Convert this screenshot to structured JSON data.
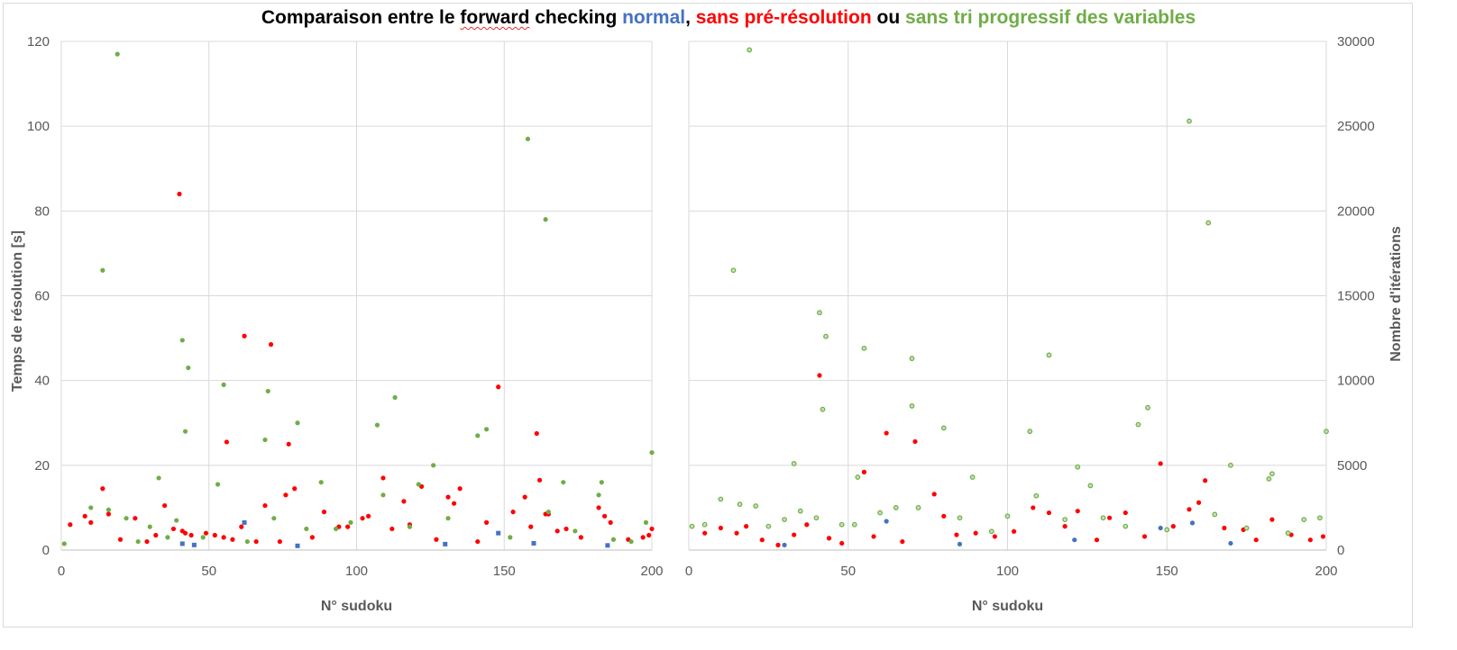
{
  "title": {
    "part1": "Comparaison entre le ",
    "part2": "forward",
    "part3": " checking ",
    "normal": "normal",
    "comma": ", ",
    "sans_pre": "sans pré-résolution",
    "ou": " ou ",
    "sans_tri": "sans tri progressif des variables"
  },
  "colors": {
    "normal": "#4472c4",
    "sans_pre": "#ff0000",
    "sans_tri": "#70ad47"
  },
  "chart_data": [
    {
      "type": "scatter",
      "xlabel": "N° sudoku",
      "ylabel": "Temps de résolution [s]",
      "xlim": [
        0,
        200
      ],
      "ylim": [
        0,
        120
      ],
      "xticks": [
        0,
        50,
        100,
        150,
        200
      ],
      "yticks": [
        0,
        20,
        40,
        60,
        80,
        100,
        120
      ],
      "grid": true,
      "series": [
        {
          "name": "normal",
          "color": "#4472c4",
          "marker": "square",
          "points": [
            [
              62,
              6.5
            ],
            [
              148,
              4
            ],
            [
              41,
              1.5
            ],
            [
              45,
              1.2
            ],
            [
              80,
              1.0
            ],
            [
              130,
              1.4
            ],
            [
              160,
              1.6
            ],
            [
              185,
              1.1
            ]
          ]
        },
        {
          "name": "sans pré-résolution",
          "color": "#ff0000",
          "marker": "circle",
          "points": [
            [
              3,
              6
            ],
            [
              8,
              8
            ],
            [
              10,
              6.5
            ],
            [
              14,
              14.5
            ],
            [
              16,
              8.5
            ],
            [
              20,
              2.5
            ],
            [
              25,
              7.5
            ],
            [
              29,
              2
            ],
            [
              32,
              3.5
            ],
            [
              35,
              10.5
            ],
            [
              38,
              5
            ],
            [
              40,
              84
            ],
            [
              41,
              4.5
            ],
            [
              42,
              4
            ],
            [
              44,
              3.5
            ],
            [
              49,
              4
            ],
            [
              52,
              3.5
            ],
            [
              55,
              3
            ],
            [
              56,
              25.5
            ],
            [
              58,
              2.5
            ],
            [
              61,
              5.5
            ],
            [
              62,
              50.5
            ],
            [
              66,
              2
            ],
            [
              69,
              10.5
            ],
            [
              71,
              48.5
            ],
            [
              74,
              2
            ],
            [
              76,
              13
            ],
            [
              77,
              25
            ],
            [
              79,
              14.5
            ],
            [
              85,
              3
            ],
            [
              89,
              9
            ],
            [
              94,
              5.5
            ],
            [
              97,
              5.5
            ],
            [
              102,
              7.5
            ],
            [
              104,
              8
            ],
            [
              109,
              17
            ],
            [
              112,
              5
            ],
            [
              116,
              11.5
            ],
            [
              118,
              6
            ],
            [
              122,
              15
            ],
            [
              127,
              2.5
            ],
            [
              131,
              12.5
            ],
            [
              133,
              11
            ],
            [
              135,
              14.5
            ],
            [
              141,
              2
            ],
            [
              144,
              6.5
            ],
            [
              148,
              38.5
            ],
            [
              153,
              9
            ],
            [
              157,
              12.5
            ],
            [
              159,
              5.5
            ],
            [
              161,
              27.5
            ],
            [
              162,
              16.5
            ],
            [
              164,
              8.5
            ],
            [
              165,
              8.5
            ],
            [
              168,
              4.5
            ],
            [
              171,
              5
            ],
            [
              176,
              3
            ],
            [
              182,
              10
            ],
            [
              184,
              8
            ],
            [
              186,
              6.5
            ],
            [
              192,
              2.5
            ],
            [
              197,
              3
            ],
            [
              199,
              3.5
            ],
            [
              200,
              5
            ]
          ]
        },
        {
          "name": "sans tri progressif des variables",
          "color": "#70ad47",
          "marker": "circle",
          "points": [
            [
              1,
              1.5
            ],
            [
              10,
              10
            ],
            [
              14,
              66
            ],
            [
              16,
              9.5
            ],
            [
              19,
              117
            ],
            [
              22,
              7.5
            ],
            [
              26,
              2
            ],
            [
              30,
              5.5
            ],
            [
              33,
              17
            ],
            [
              36,
              3
            ],
            [
              39,
              7
            ],
            [
              41,
              49.5
            ],
            [
              42,
              28
            ],
            [
              43,
              43
            ],
            [
              48,
              3
            ],
            [
              53,
              15.5
            ],
            [
              55,
              39
            ],
            [
              63,
              2
            ],
            [
              69,
              26
            ],
            [
              70,
              37.5
            ],
            [
              72,
              7.5
            ],
            [
              80,
              30
            ],
            [
              83,
              5
            ],
            [
              88,
              16
            ],
            [
              93,
              5
            ],
            [
              98,
              6.5
            ],
            [
              107,
              29.5
            ],
            [
              109,
              13
            ],
            [
              113,
              36
            ],
            [
              118,
              5.5
            ],
            [
              121,
              15.5
            ],
            [
              126,
              20
            ],
            [
              131,
              7.5
            ],
            [
              141,
              27
            ],
            [
              144,
              28.5
            ],
            [
              152,
              3
            ],
            [
              158,
              97
            ],
            [
              164,
              78
            ],
            [
              165,
              9
            ],
            [
              170,
              16
            ],
            [
              174,
              4.5
            ],
            [
              182,
              13
            ],
            [
              183,
              16
            ],
            [
              187,
              2.5
            ],
            [
              193,
              2
            ],
            [
              198,
              6.5
            ],
            [
              200,
              23
            ]
          ]
        }
      ]
    },
    {
      "type": "scatter",
      "xlabel": "N° sudoku",
      "ylabel": "Nombre d'itérations",
      "xlim": [
        0,
        200
      ],
      "ylim": [
        0,
        30000
      ],
      "xticks": [
        0,
        50,
        100,
        150,
        200
      ],
      "yticks": [
        0,
        5000,
        10000,
        15000,
        20000,
        25000,
        30000
      ],
      "yaxis_side": "right",
      "grid": true,
      "series": [
        {
          "name": "normal",
          "color": "#4472c4",
          "marker": "circle",
          "points": [
            [
              62,
              1700
            ],
            [
              148,
              1300
            ],
            [
              158,
              1600
            ],
            [
              44,
              700
            ],
            [
              121,
              600
            ],
            [
              170,
              400
            ],
            [
              85,
              350
            ],
            [
              30,
              300
            ]
          ]
        },
        {
          "name": "sans pré-résolution",
          "color": "#ff0000",
          "marker": "circle",
          "points": [
            [
              5,
              1000
            ],
            [
              10,
              1300
            ],
            [
              15,
              1000
            ],
            [
              18,
              1400
            ],
            [
              23,
              600
            ],
            [
              28,
              300
            ],
            [
              33,
              900
            ],
            [
              37,
              1500
            ],
            [
              41,
              10300
            ],
            [
              44,
              700
            ],
            [
              48,
              400
            ],
            [
              55,
              4600
            ],
            [
              58,
              800
            ],
            [
              62,
              6900
            ],
            [
              67,
              500
            ],
            [
              71,
              6400
            ],
            [
              77,
              3300
            ],
            [
              80,
              2000
            ],
            [
              84,
              900
            ],
            [
              90,
              1000
            ],
            [
              96,
              800
            ],
            [
              102,
              1100
            ],
            [
              108,
              2500
            ],
            [
              113,
              2200
            ],
            [
              118,
              1400
            ],
            [
              122,
              2300
            ],
            [
              128,
              600
            ],
            [
              132,
              1900
            ],
            [
              137,
              2200
            ],
            [
              143,
              800
            ],
            [
              148,
              5100
            ],
            [
              152,
              1400
            ],
            [
              157,
              2400
            ],
            [
              160,
              2800
            ],
            [
              162,
              4100
            ],
            [
              168,
              1300
            ],
            [
              174,
              1200
            ],
            [
              178,
              600
            ],
            [
              183,
              1800
            ],
            [
              189,
              900
            ],
            [
              195,
              600
            ],
            [
              199,
              800
            ]
          ]
        },
        {
          "name": "sans tri progressif des variables",
          "color": "#70ad47",
          "marker": "ring",
          "points": [
            [
              1,
              1400
            ],
            [
              5,
              1500
            ],
            [
              10,
              3000
            ],
            [
              14,
              16500
            ],
            [
              16,
              2700
            ],
            [
              19,
              29500
            ],
            [
              21,
              2600
            ],
            [
              25,
              1400
            ],
            [
              30,
              1800
            ],
            [
              33,
              5100
            ],
            [
              35,
              2300
            ],
            [
              40,
              1900
            ],
            [
              41,
              14000
            ],
            [
              42,
              8300
            ],
            [
              43,
              12600
            ],
            [
              48,
              1500
            ],
            [
              52,
              1500
            ],
            [
              53,
              4300
            ],
            [
              55,
              11900
            ],
            [
              60,
              2200
            ],
            [
              65,
              2500
            ],
            [
              70,
              8500
            ],
            [
              70,
              11300
            ],
            [
              72,
              2500
            ],
            [
              80,
              7200
            ],
            [
              85,
              1900
            ],
            [
              89,
              4300
            ],
            [
              95,
              1100
            ],
            [
              100,
              2000
            ],
            [
              107,
              7000
            ],
            [
              109,
              3200
            ],
            [
              113,
              11500
            ],
            [
              118,
              1800
            ],
            [
              122,
              4900
            ],
            [
              126,
              3800
            ],
            [
              130,
              1900
            ],
            [
              137,
              1400
            ],
            [
              141,
              7400
            ],
            [
              144,
              8400
            ],
            [
              150,
              1200
            ],
            [
              157,
              25300
            ],
            [
              163,
              19300
            ],
            [
              165,
              2100
            ],
            [
              170,
              5000
            ],
            [
              175,
              1300
            ],
            [
              182,
              4200
            ],
            [
              183,
              4500
            ],
            [
              188,
              1000
            ],
            [
              193,
              1800
            ],
            [
              198,
              1900
            ],
            [
              200,
              7000
            ]
          ]
        }
      ]
    }
  ]
}
